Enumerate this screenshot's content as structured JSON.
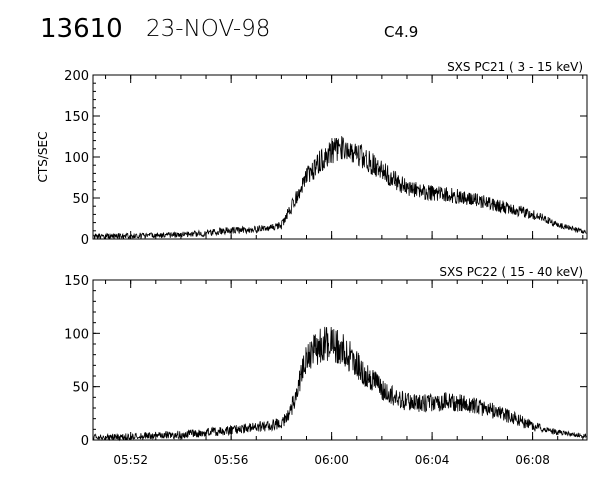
{
  "header": {
    "event_id": "13610",
    "date": "23-NOV-98",
    "flare_class": "C4.9"
  },
  "chart_data": [
    {
      "type": "line",
      "title": "SXS PC21  ( 3 - 15 keV)",
      "ylabel": "CTS/SEC",
      "xlabel": "",
      "ylim": [
        0,
        200
      ],
      "yticks": [
        0,
        50,
        100,
        150,
        200
      ],
      "xlim": [
        "05:50:30",
        "06:10:10"
      ],
      "xticks": [
        "05:52",
        "05:56",
        "06:00",
        "06:04",
        "06:08"
      ],
      "show_xtick_labels": false,
      "grid": false,
      "series": [
        {
          "values_description_points_x": [
            "05:50:30",
            "05:52:00",
            "05:54:00",
            "05:55:00",
            "05:55:40",
            "05:56:30",
            "05:57:30",
            "05:58:00",
            "05:58:20",
            "05:58:40",
            "05:59:00",
            "05:59:30",
            "06:00:00",
            "06:00:30",
            "06:01:00",
            "06:01:30",
            "06:02:00",
            "06:02:30",
            "06:03:00",
            "06:03:30",
            "06:04:00",
            "06:04:30",
            "06:05:00",
            "06:05:30",
            "06:06:00",
            "06:06:30",
            "06:07:00",
            "06:07:30",
            "06:08:00",
            "06:08:20",
            "06:09:00",
            "06:10:10"
          ],
          "values_description_points_y": [
            3,
            4,
            5,
            7,
            10,
            11,
            13,
            17,
            35,
            55,
            75,
            93,
            108,
            112,
            105,
            95,
            83,
            72,
            63,
            58,
            56,
            54,
            52,
            50,
            46,
            42,
            38,
            34,
            30,
            27,
            17,
            8
          ]
        }
      ]
    },
    {
      "type": "line",
      "title": "SXS PC22  ( 15 - 40 keV)",
      "ylabel": "",
      "xlabel": "",
      "ylim": [
        0,
        150
      ],
      "yticks": [
        0,
        50,
        100,
        150
      ],
      "xlim": [
        "05:50:30",
        "06:10:10"
      ],
      "xticks": [
        "05:52",
        "05:56",
        "06:00",
        "06:04",
        "06:08"
      ],
      "show_xtick_labels": true,
      "grid": false,
      "series": [
        {
          "values_description_points_x": [
            "05:50:30",
            "05:52:00",
            "05:54:00",
            "05:55:00",
            "05:56:00",
            "05:57:00",
            "05:58:00",
            "05:58:20",
            "05:58:40",
            "05:59:00",
            "05:59:30",
            "06:00:00",
            "06:00:30",
            "06:01:00",
            "06:01:30",
            "06:02:00",
            "06:02:30",
            "06:03:00",
            "06:03:30",
            "06:04:00",
            "06:04:30",
            "06:05:00",
            "06:05:30",
            "06:06:00",
            "06:06:30",
            "06:07:00",
            "06:07:30",
            "06:08:00",
            "06:08:20",
            "06:09:00",
            "06:10:10"
          ],
          "values_description_points_y": [
            2,
            3,
            5,
            7,
            9,
            12,
            15,
            25,
            50,
            78,
            88,
            92,
            85,
            70,
            57,
            48,
            40,
            36,
            34,
            35,
            36,
            35,
            33,
            30,
            27,
            23,
            18,
            14,
            10,
            7,
            4
          ]
        }
      ]
    }
  ]
}
